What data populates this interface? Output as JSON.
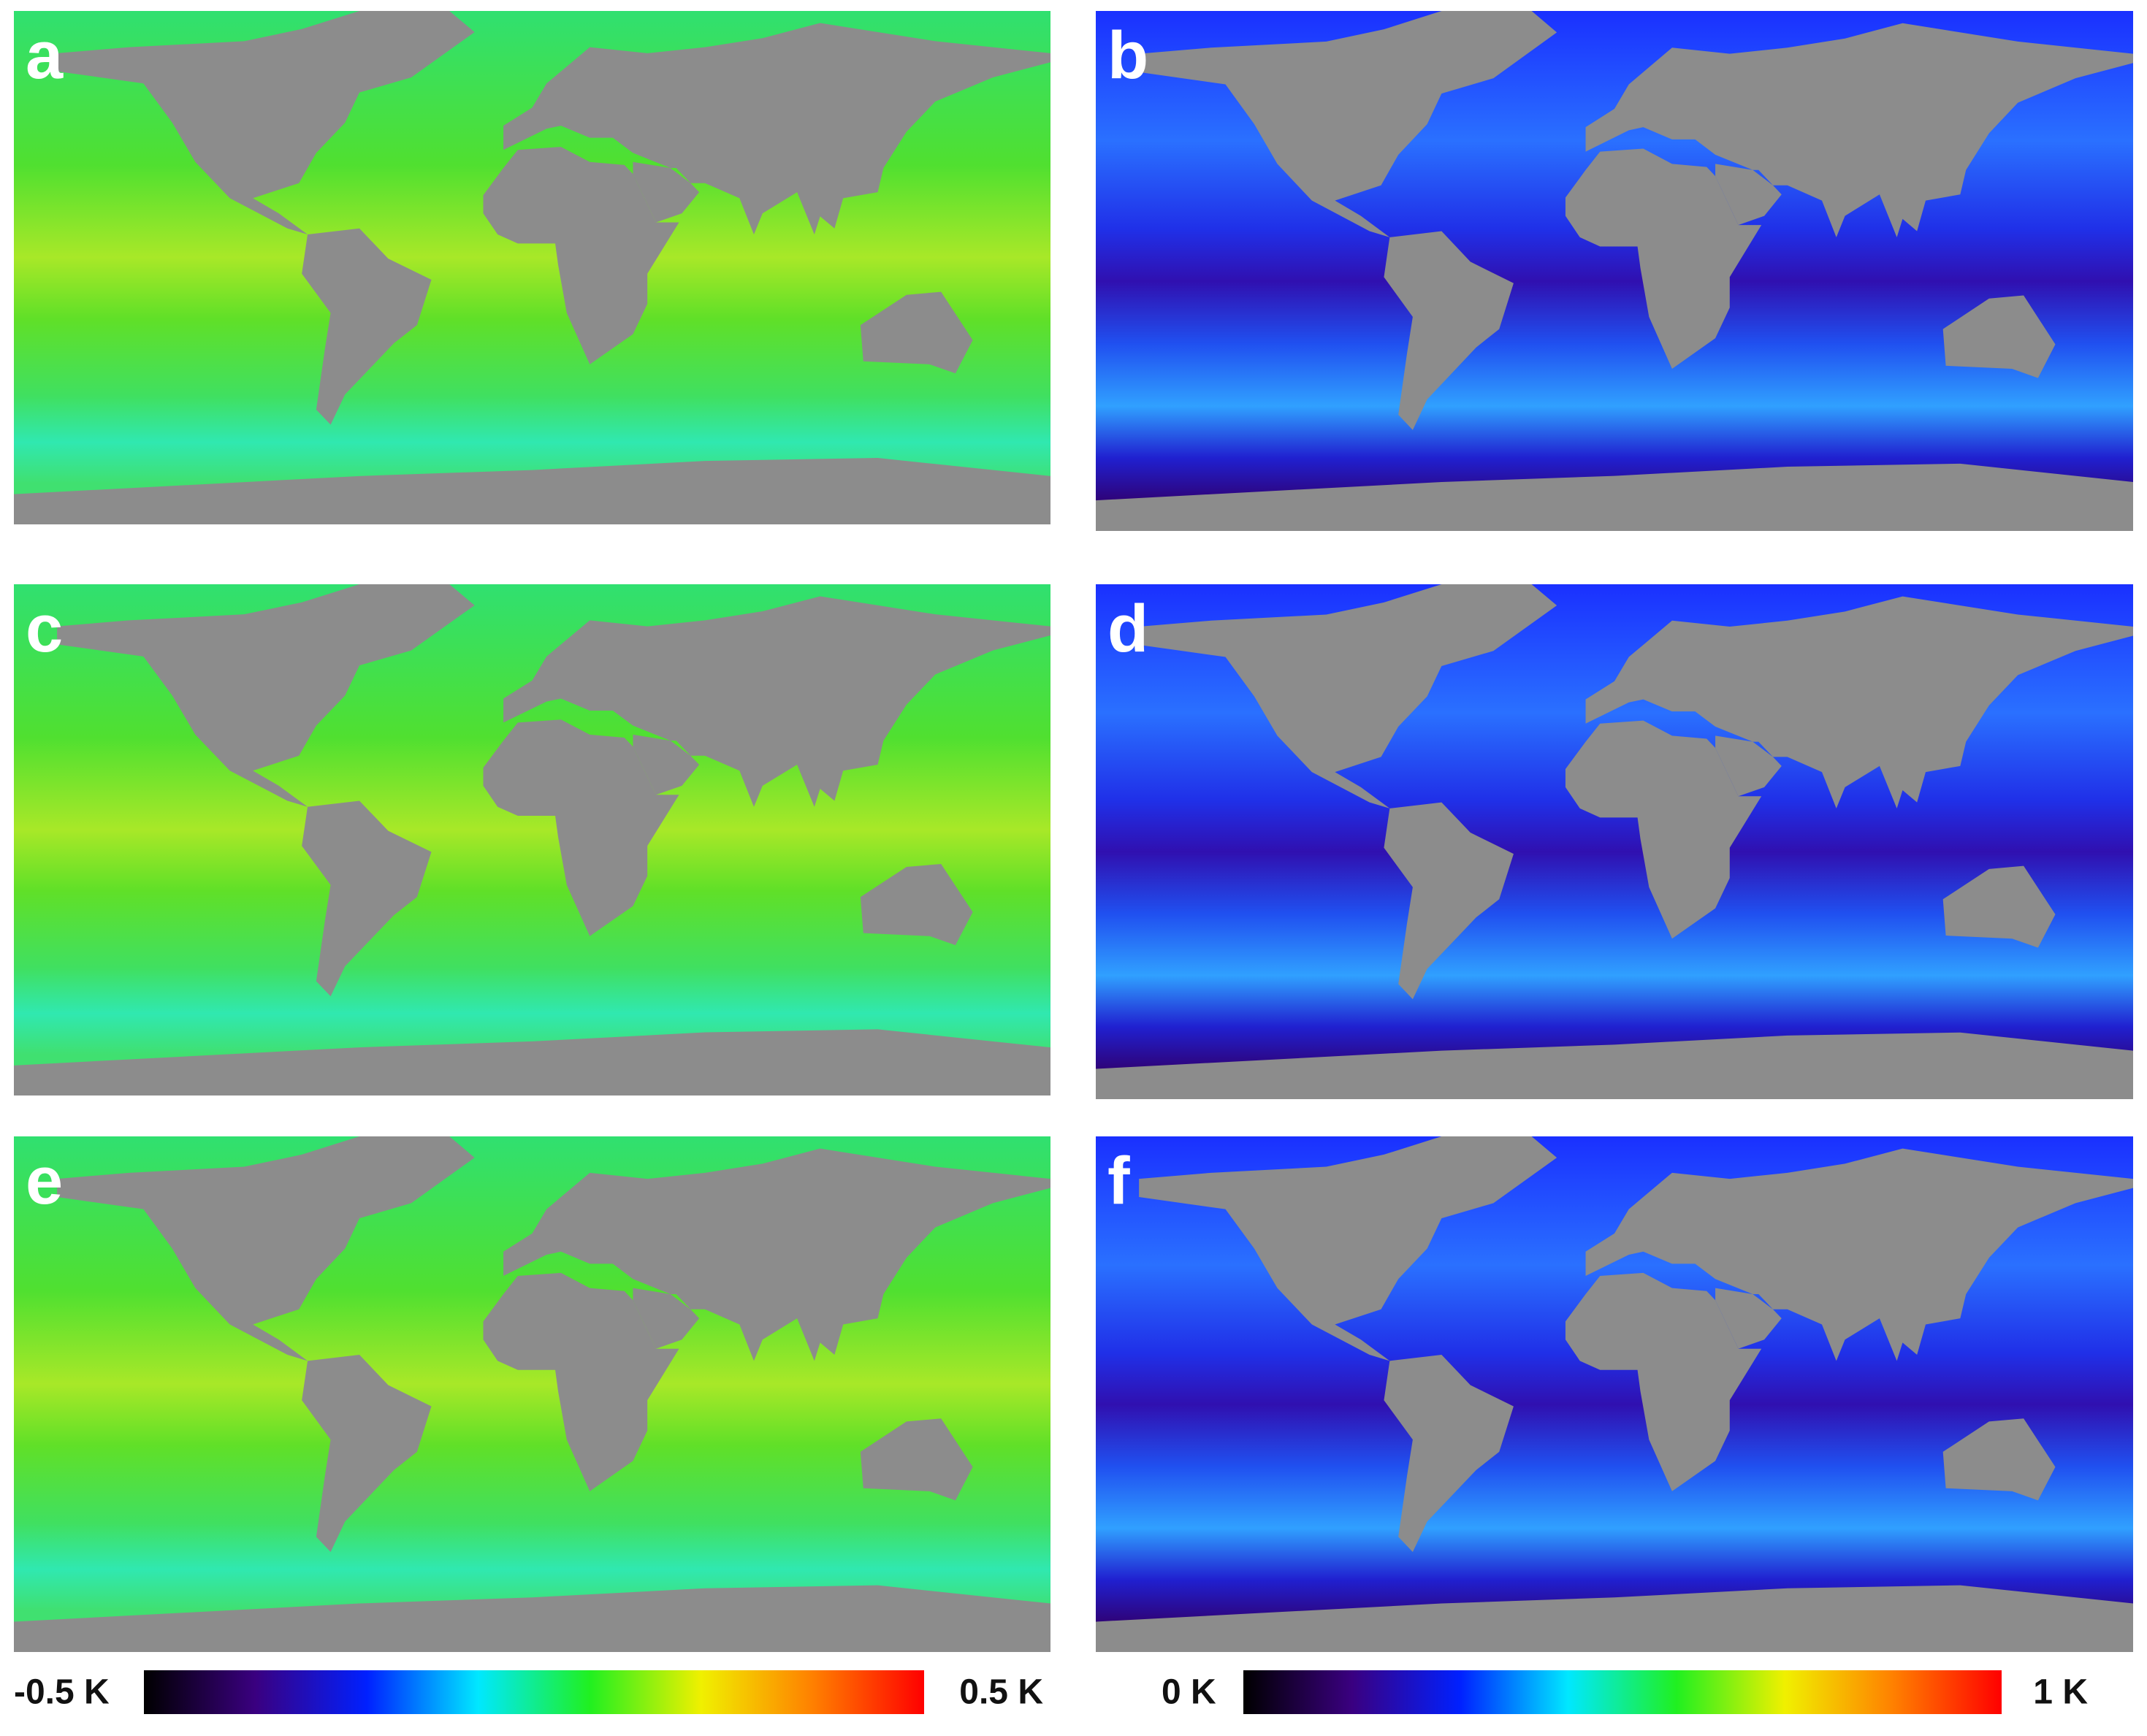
{
  "panels": [
    {
      "label": "a"
    },
    {
      "label": "b"
    },
    {
      "label": "c"
    },
    {
      "label": "d"
    },
    {
      "label": "e"
    },
    {
      "label": "f"
    }
  ],
  "colorbars": [
    {
      "min_label": "-0.5 K",
      "max_label": "0.5 K",
      "colors": [
        "#000000",
        "#3a0080",
        "#0020ff",
        "#00e8ff",
        "#20f020",
        "#f0f000",
        "#ff8000",
        "#ff0000"
      ]
    },
    {
      "min_label": "0 K",
      "max_label": "1 K",
      "colors": [
        "#000000",
        "#3a0080",
        "#0020ff",
        "#00e8ff",
        "#20f020",
        "#f0f000",
        "#ff8000",
        "#ff0000"
      ]
    }
  ]
}
